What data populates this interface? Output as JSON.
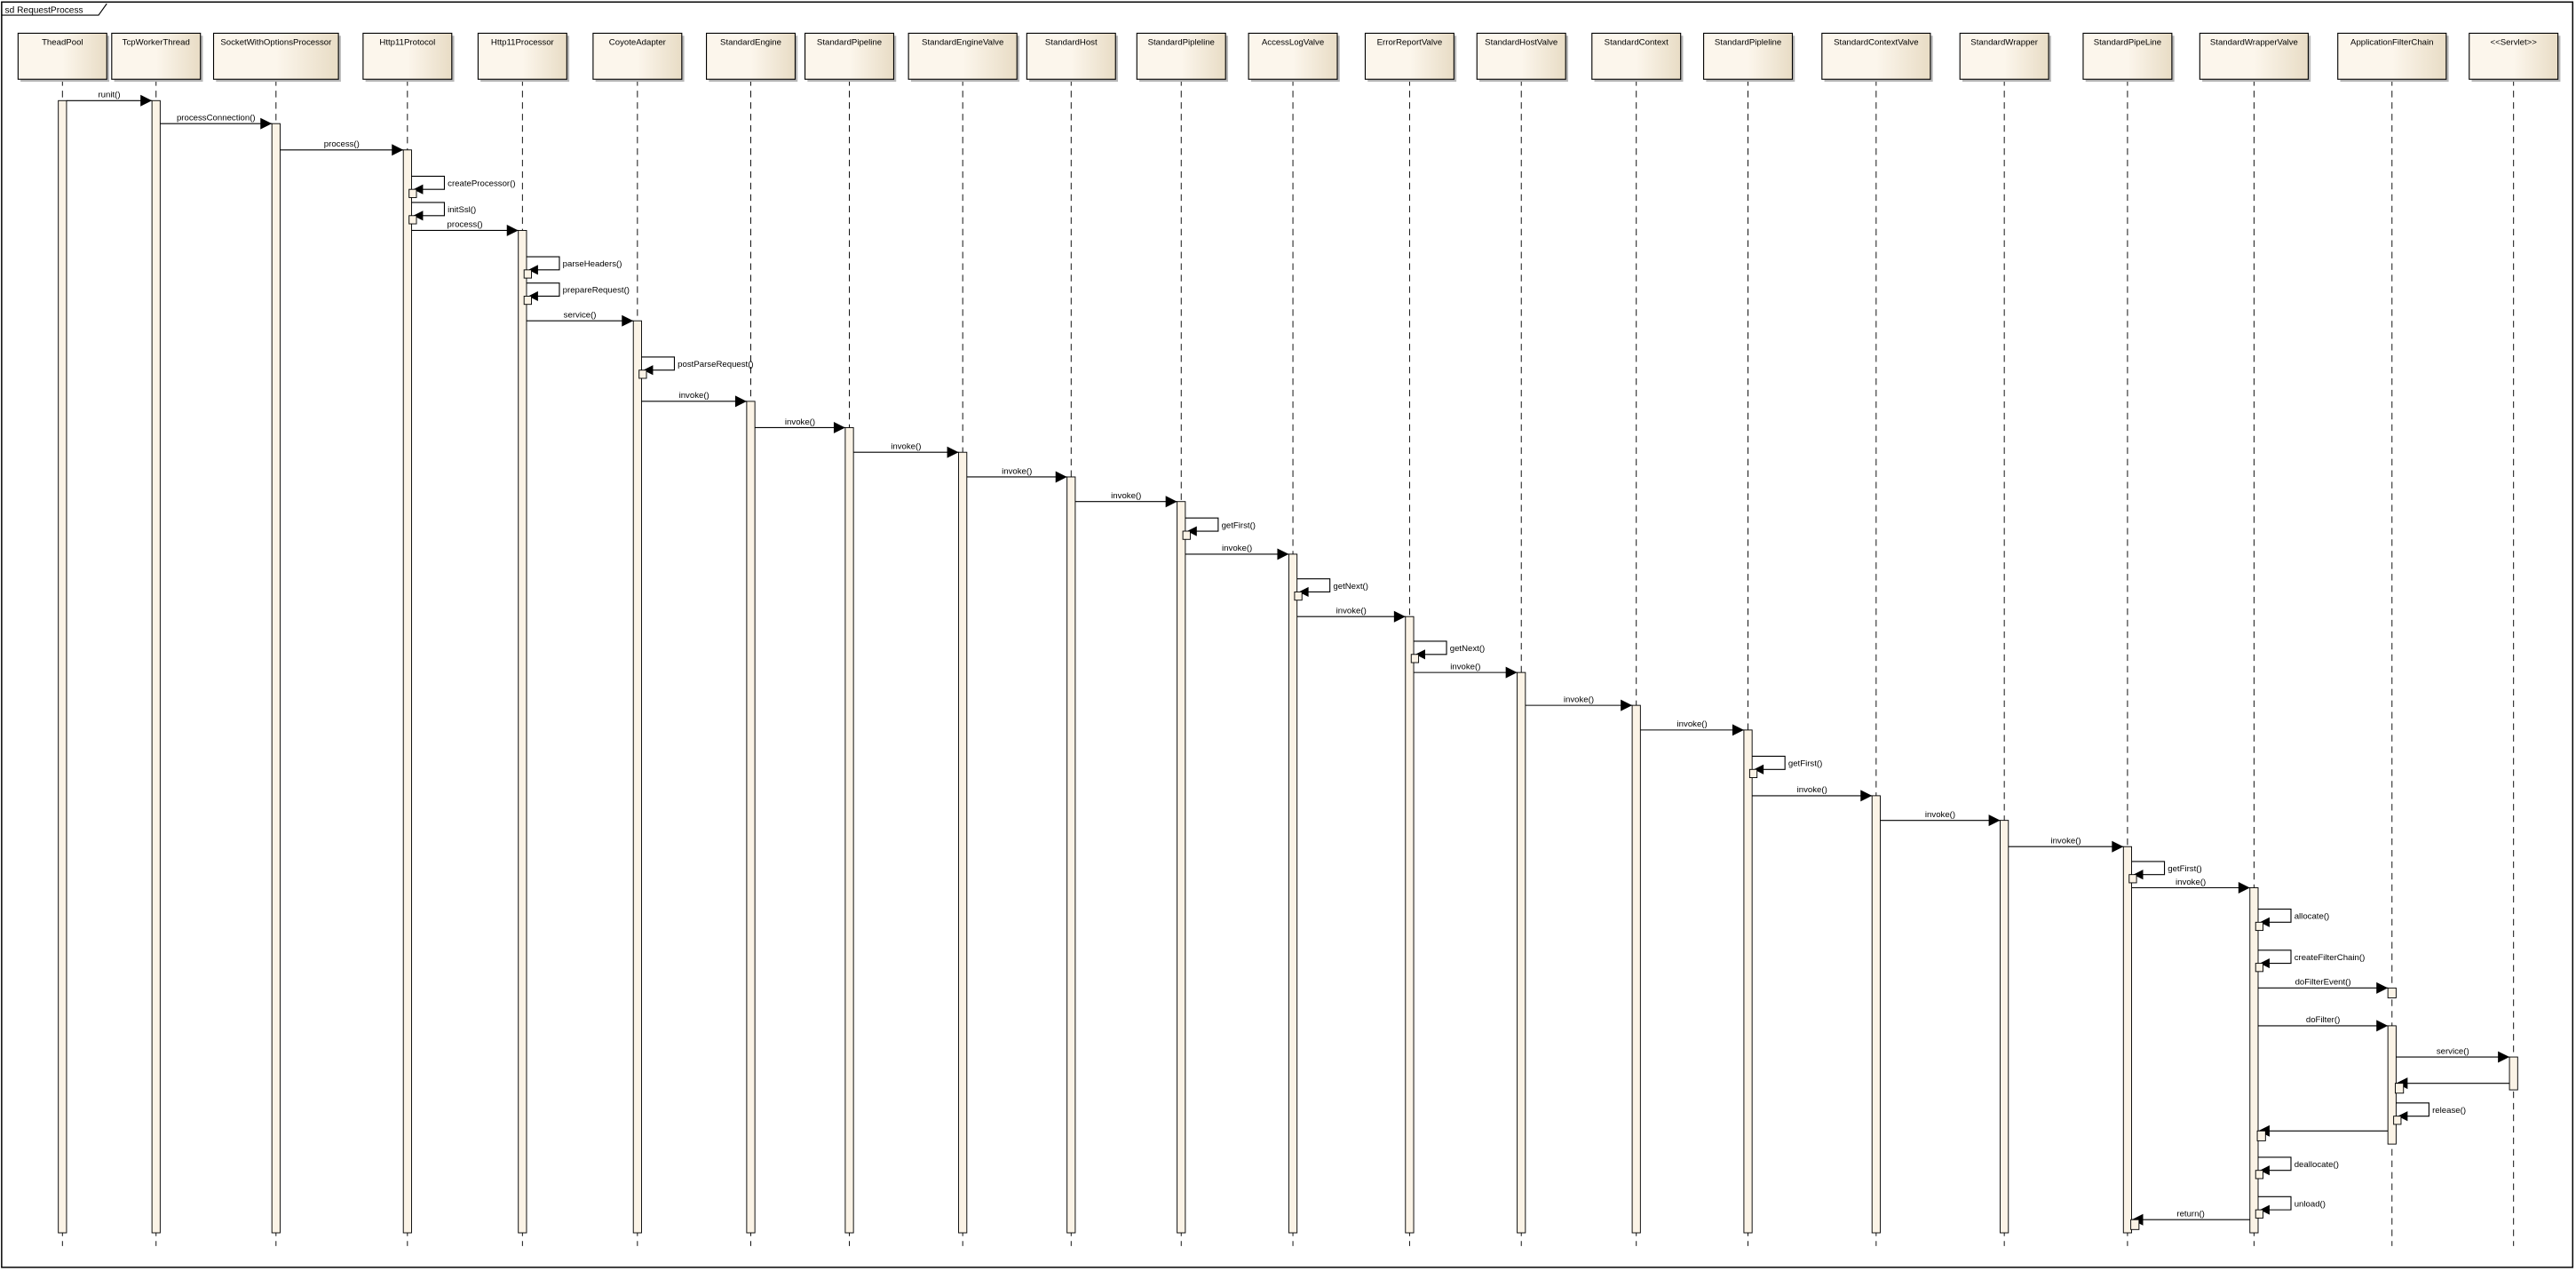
{
  "frame": {
    "title": "sd RequestProcess"
  },
  "colors": {
    "box_light": "#fcf6ec",
    "box_dark": "#e8dcc5",
    "activation": "#fbf3e6",
    "line": "#000000",
    "shadow": "#b8b8b8"
  },
  "participants": [
    "TheadPool",
    "TcpWorkerThread",
    "SocketWithOptionsProcessor",
    "Http11Protocol",
    "Http11Processor",
    "CoyoteAdapter",
    "StandardEngine",
    "StandardPipeline",
    "StandardEngineValve",
    "StandardHost",
    "StandardPipleline",
    "AccessLogValve",
    "ErrorReportValve",
    "StandardHostValve",
    "StandardContext",
    "StandardPipleline",
    "StandardContextValve",
    "StandardWrapper",
    "StandardPipeLine",
    "StandardWrapperValve",
    "ApplicationFilterChain",
    "<<Servlet>>"
  ],
  "messages": [
    {
      "from": 0,
      "to": 1,
      "label": "runit()"
    },
    {
      "from": 1,
      "to": 2,
      "label": "processConnection()"
    },
    {
      "from": 2,
      "to": 3,
      "label": "process()"
    },
    {
      "from": 3,
      "to": 3,
      "label": "createProcessor()"
    },
    {
      "from": 3,
      "to": 3,
      "label": "initSsl()"
    },
    {
      "from": 3,
      "to": 4,
      "label": "process()"
    },
    {
      "from": 4,
      "to": 4,
      "label": "parseHeaders()"
    },
    {
      "from": 4,
      "to": 4,
      "label": "prepareRequest()"
    },
    {
      "from": 4,
      "to": 5,
      "label": "service()"
    },
    {
      "from": 5,
      "to": 5,
      "label": "postParseRequest()"
    },
    {
      "from": 5,
      "to": 6,
      "label": "invoke()"
    },
    {
      "from": 6,
      "to": 7,
      "label": "invoke()"
    },
    {
      "from": 7,
      "to": 8,
      "label": "invoke()"
    },
    {
      "from": 8,
      "to": 9,
      "label": "invoke()"
    },
    {
      "from": 9,
      "to": 10,
      "label": "invoke()"
    },
    {
      "from": 10,
      "to": 10,
      "label": "getFirst()"
    },
    {
      "from": 10,
      "to": 11,
      "label": "invoke()"
    },
    {
      "from": 11,
      "to": 11,
      "label": "getNext()"
    },
    {
      "from": 11,
      "to": 12,
      "label": "invoke()"
    },
    {
      "from": 12,
      "to": 12,
      "label": "getNext()"
    },
    {
      "from": 12,
      "to": 13,
      "label": "invoke()"
    },
    {
      "from": 13,
      "to": 14,
      "label": "invoke()"
    },
    {
      "from": 14,
      "to": 15,
      "label": "invoke()"
    },
    {
      "from": 15,
      "to": 15,
      "label": "getFirst()"
    },
    {
      "from": 15,
      "to": 16,
      "label": "invoke()"
    },
    {
      "from": 16,
      "to": 17,
      "label": "invoke()"
    },
    {
      "from": 17,
      "to": 18,
      "label": "invoke()"
    },
    {
      "from": 18,
      "to": 18,
      "label": "getFirst()"
    },
    {
      "from": 18,
      "to": 19,
      "label": "invoke()"
    },
    {
      "from": 19,
      "to": 19,
      "label": "allocate()"
    },
    {
      "from": 19,
      "to": 19,
      "label": "createFilterChain()"
    },
    {
      "from": 19,
      "to": 20,
      "label": "doFilterEvent()"
    },
    {
      "from": 19,
      "to": 20,
      "label": "doFilter()"
    },
    {
      "from": 20,
      "to": 21,
      "label": "service()"
    },
    {
      "from": 21,
      "to": 20,
      "label": ""
    },
    {
      "from": 20,
      "to": 20,
      "label": "release()"
    },
    {
      "from": 20,
      "to": 19,
      "label": ""
    },
    {
      "from": 19,
      "to": 19,
      "label": "deallocate()"
    },
    {
      "from": 19,
      "to": 19,
      "label": "unload()"
    },
    {
      "from": 19,
      "to": 18,
      "label": "return()"
    }
  ]
}
